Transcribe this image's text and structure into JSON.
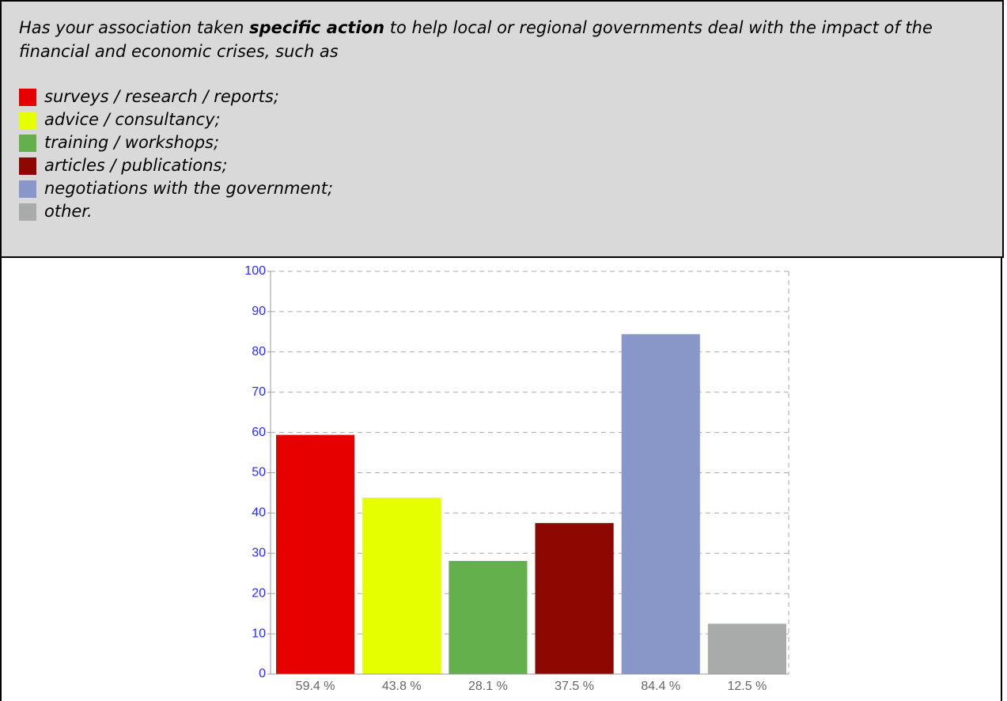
{
  "chart_data": {
    "type": "bar",
    "question": {
      "before": "Has your association taken ",
      "emphasis": "specific action",
      "after": " to help local or regional governments deal with the impact of the financial and economic crises, such as"
    },
    "categories": [
      "surveys / research / reports;",
      "advice / consultancy;",
      "training / workshops;",
      "articles / publications;",
      "negotiations with the government;",
      "other."
    ],
    "values": [
      59.4,
      43.8,
      28.1,
      37.5,
      84.4,
      12.5
    ],
    "value_labels": [
      "59.4 %",
      "43.8 %",
      "28.1 %",
      "37.5 %",
      "84.4 %",
      "12.5 %"
    ],
    "colors": [
      "#e60000",
      "#e6ff00",
      "#63b04c",
      "#8c0800",
      "#8896c8",
      "#a9abab"
    ],
    "ylim": [
      0,
      100
    ],
    "yticks": [
      0,
      10,
      20,
      30,
      40,
      50,
      60,
      70,
      80,
      90,
      100
    ],
    "grid": true
  }
}
